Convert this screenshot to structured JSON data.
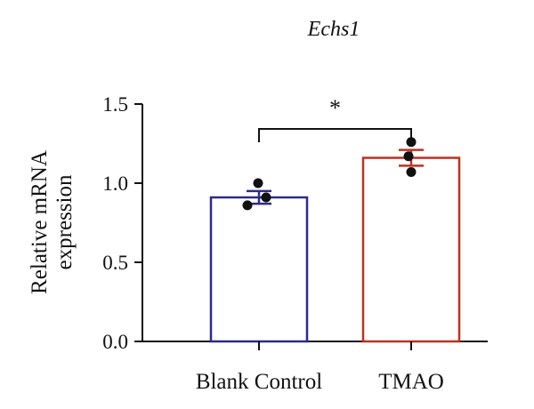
{
  "chart_data": {
    "type": "bar",
    "title": "Echs1",
    "ylabel_lines": [
      "Relative mRNA",
      "expression"
    ],
    "categories": [
      "Blank Control",
      "TMAO"
    ],
    "values": [
      0.91,
      1.16
    ],
    "error": [
      0.04,
      0.05
    ],
    "points": [
      [
        1.0,
        0.91,
        0.86
      ],
      [
        1.26,
        1.17,
        1.07
      ]
    ],
    "ylim": [
      0.0,
      1.5
    ],
    "yticks": [
      "0.0",
      "0.5",
      "1.0",
      "1.5"
    ],
    "significance": "*",
    "grid": false,
    "colors": [
      "#2e2a8c",
      "#c0301f"
    ]
  }
}
